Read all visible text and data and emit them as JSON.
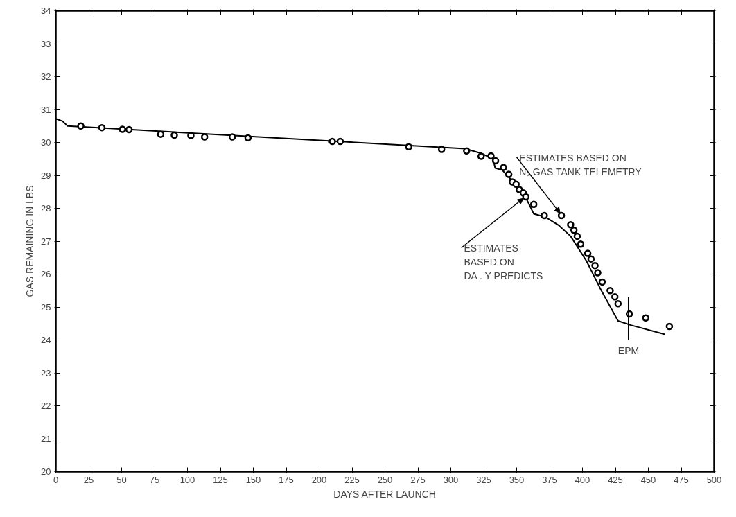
{
  "chart_data": {
    "type": "scatter",
    "xlabel": "DAYS AFTER LAUNCH",
    "ylabel": "GAS REMAINING IN LBS",
    "xlim": [
      0,
      500
    ],
    "ylim": [
      20,
      34
    ],
    "xticks": [
      0,
      25,
      50,
      75,
      100,
      125,
      150,
      175,
      200,
      225,
      250,
      275,
      300,
      325,
      350,
      375,
      400,
      425,
      450,
      475,
      500
    ],
    "yticks": [
      20,
      21,
      22,
      23,
      24,
      25,
      26,
      27,
      28,
      29,
      30,
      31,
      32,
      33,
      34
    ],
    "grid": false,
    "series": [
      {
        "type": "line",
        "color": "#000000",
        "marker": "none",
        "line_style": "solid",
        "x": [
          0,
          5,
          9,
          311,
          323,
          332,
          333.7,
          339,
          347.5,
          358,
          363,
          372,
          382,
          391,
          403,
          413.4,
          427,
          436.7,
          462.7
        ],
        "values": [
          30.72,
          30.65,
          30.5,
          29.81,
          29.67,
          29.5,
          29.22,
          29.16,
          28.8,
          28.24,
          27.83,
          27.73,
          27.48,
          27.15,
          26.4,
          25.57,
          24.58,
          24.45,
          24.17
        ]
      },
      {
        "color": "#000000",
        "marker": "circle",
        "x": [
          19,
          35,
          50.6,
          55.6,
          79.7,
          90,
          102.6,
          113,
          134,
          146,
          210,
          216,
          268,
          293,
          312,
          323,
          330.5,
          334,
          340,
          344,
          346.7,
          349.6,
          352,
          355,
          357,
          363,
          371,
          384,
          391,
          393.5,
          396,
          398.6,
          404,
          406.5,
          409.5,
          411.6,
          415,
          421,
          424.6,
          427,
          435.6,
          448,
          466
        ],
        "values": [
          30.5,
          30.45,
          30.4,
          30.39,
          30.25,
          30.22,
          30.21,
          30.17,
          30.17,
          30.14,
          30.03,
          30.03,
          29.87,
          29.79,
          29.74,
          29.58,
          29.59,
          29.44,
          29.24,
          29.03,
          28.8,
          28.73,
          28.57,
          28.47,
          28.35,
          28.12,
          27.78,
          27.78,
          27.5,
          27.33,
          27.15,
          26.91,
          26.63,
          26.46,
          26.26,
          26.04,
          25.76,
          25.5,
          25.31,
          25.1,
          24.79,
          24.67,
          24.41
        ]
      }
    ],
    "annotations": [
      {
        "text": "ESTIMATES BASED ON\nN₂ GAS TANK TELEMETRY",
        "x": 383,
        "y": 27.85
      },
      {
        "text": "ESTIMATES\nBASED ON\nDA . Y PREDICTS",
        "x": 355,
        "y": 28.3
      }
    ],
    "ref_lines": [
      {
        "axis": "x",
        "value": 435,
        "label": "EPM"
      }
    ]
  }
}
